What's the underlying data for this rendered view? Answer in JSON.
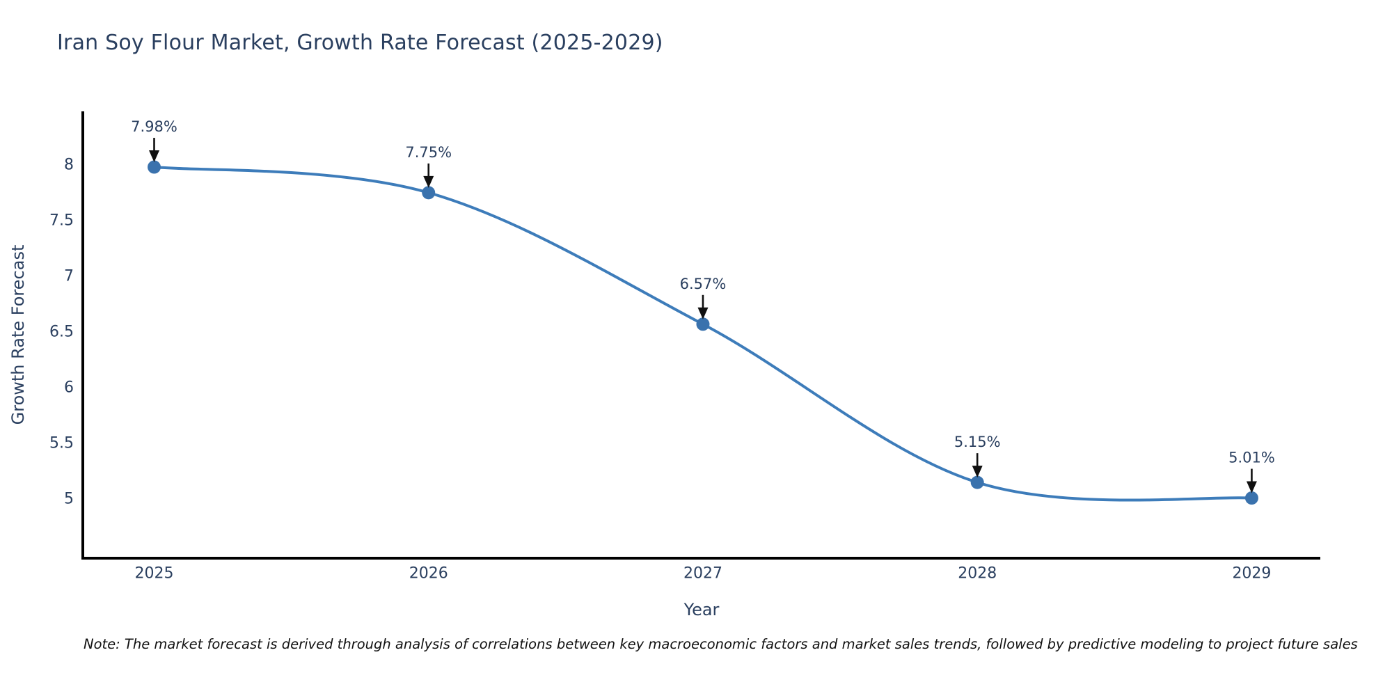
{
  "title": "Iran Soy Flour Market, Growth Rate Forecast (2025-2029)",
  "note": "Note: The market forecast is derived through analysis of correlations between key macroeconomic factors and market sales trends, followed by predictive modeling to project future sales",
  "chart_data": {
    "type": "line",
    "line_shape": "spline",
    "categories": [
      "2025",
      "2026",
      "2027",
      "2028",
      "2029"
    ],
    "x": [
      2025,
      2026,
      2027,
      2028,
      2029
    ],
    "values": [
      7.98,
      7.75,
      6.57,
      5.15,
      5.01
    ],
    "point_labels": [
      "7.98%",
      "7.75%",
      "6.57%",
      "5.15%",
      "5.01%"
    ],
    "xlabel": "Year",
    "ylabel": "Growth Rate Forecast",
    "yticks": [
      5,
      5.5,
      6,
      6.5,
      7,
      7.5,
      8
    ],
    "ylim": [
      4.47,
      8.48
    ],
    "xlim": [
      2024.74,
      2029.25
    ],
    "grid": false,
    "legend": "none",
    "colors": {
      "line": "#3d7cba",
      "marker": "#3a72ad",
      "axis": "#000000",
      "tick_text": "#2a3f5f",
      "annotation_text": "#2a3f5f",
      "arrow": "#101010",
      "title_text": "#2a3f5f"
    }
  }
}
